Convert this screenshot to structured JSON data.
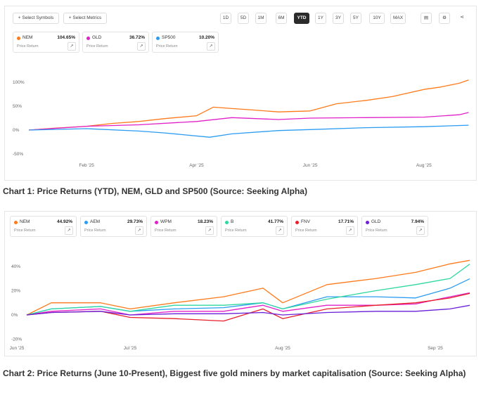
{
  "chart1": {
    "toolbar": {
      "select_symbols": "+ Select Symbols",
      "select_metrics": "+ Select Metrics",
      "ranges": [
        "1D",
        "5D",
        "1M",
        "6M",
        "YTD",
        "1Y",
        "3Y",
        "5Y",
        "10Y",
        "MAX"
      ],
      "active_range": "YTD",
      "icons": [
        "calendar-icon",
        "gear-icon",
        "share-icon"
      ]
    },
    "cards": [
      {
        "symbol": "NEM",
        "value": "104.65%",
        "metric": "Price Return",
        "color": "#ff7a1a"
      },
      {
        "symbol": "GLD",
        "value": "36.72%",
        "metric": "Price Return",
        "color": "#e020c8"
      },
      {
        "symbol": "SP500",
        "value": "10.20%",
        "metric": "Price Return",
        "color": "#2b9cf2"
      }
    ],
    "caption": "Chart 1: Price Returns (YTD), NEM, GLD and SP500 (Source: Seeking Alpha)"
  },
  "chart2": {
    "cards": [
      {
        "symbol": "NEM",
        "value": "44.92%",
        "metric": "Price Return",
        "color": "#ff7a1a"
      },
      {
        "symbol": "AEM",
        "value": "29.73%",
        "metric": "Price Return",
        "color": "#2b9cf2"
      },
      {
        "symbol": "WPM",
        "value": "18.23%",
        "metric": "Price Return",
        "color": "#e020c8"
      },
      {
        "symbol": "B",
        "value": "41.77%",
        "metric": "Price Return",
        "color": "#2ed8a0"
      },
      {
        "symbol": "FNV",
        "value": "17.71%",
        "metric": "Price Return",
        "color": "#e8202a"
      },
      {
        "symbol": "GLD",
        "value": "7.94%",
        "metric": "Price Return",
        "color": "#6a1fd8"
      }
    ],
    "caption": "Chart 2: Price Returns (June 10-Present), Biggest five gold miners by market capitalisation (Source: Seeking Alpha)"
  },
  "chart_data": [
    {
      "type": "line",
      "ylabel": "",
      "xlabel": "",
      "ylim": [
        -50,
        110
      ],
      "yticks": [
        "100%",
        "50%",
        "0%",
        "-50%"
      ],
      "ytick_values": [
        100,
        50,
        0,
        -50
      ],
      "xticks": [
        "Feb '25",
        "Apr '25",
        "Jun '25",
        "Aug '25"
      ],
      "xtick_dates": [
        "2025-02-01",
        "2025-04-01",
        "2025-06-01",
        "2025-08-01"
      ],
      "grid": false,
      "legend": "top-left cards",
      "series": [
        {
          "name": "NEM",
          "color": "#ff7a1a",
          "points": [
            [
              "2025-01-01",
              0
            ],
            [
              "2025-01-15",
              4
            ],
            [
              "2025-02-01",
              8
            ],
            [
              "2025-02-15",
              14
            ],
            [
              "2025-03-01",
              18
            ],
            [
              "2025-03-15",
              24
            ],
            [
              "2025-04-01",
              30
            ],
            [
              "2025-04-10",
              48
            ],
            [
              "2025-04-20",
              45
            ],
            [
              "2025-05-01",
              42
            ],
            [
              "2025-05-15",
              38
            ],
            [
              "2025-06-01",
              40
            ],
            [
              "2025-06-15",
              55
            ],
            [
              "2025-07-01",
              62
            ],
            [
              "2025-07-15",
              70
            ],
            [
              "2025-08-01",
              85
            ],
            [
              "2025-08-10",
              90
            ],
            [
              "2025-08-20",
              98
            ],
            [
              "2025-08-25",
              104.65
            ]
          ]
        },
        {
          "name": "GLD",
          "color": "#e020c8",
          "points": [
            [
              "2025-01-01",
              0
            ],
            [
              "2025-02-01",
              8
            ],
            [
              "2025-03-01",
              11
            ],
            [
              "2025-04-01",
              18
            ],
            [
              "2025-04-20",
              26
            ],
            [
              "2025-05-15",
              22
            ],
            [
              "2025-06-01",
              25
            ],
            [
              "2025-07-01",
              26
            ],
            [
              "2025-08-01",
              27
            ],
            [
              "2025-08-20",
              32
            ],
            [
              "2025-08-25",
              36.72
            ]
          ]
        },
        {
          "name": "SP500",
          "color": "#2b9cf2",
          "points": [
            [
              "2025-01-01",
              0
            ],
            [
              "2025-02-01",
              3
            ],
            [
              "2025-03-01",
              -2
            ],
            [
              "2025-03-15",
              -6
            ],
            [
              "2025-04-08",
              -15
            ],
            [
              "2025-04-20",
              -8
            ],
            [
              "2025-05-15",
              -1
            ],
            [
              "2025-06-01",
              1
            ],
            [
              "2025-07-01",
              5
            ],
            [
              "2025-08-01",
              7
            ],
            [
              "2025-08-25",
              10.2
            ]
          ]
        }
      ]
    },
    {
      "type": "line",
      "ylabel": "",
      "xlabel": "",
      "ylim": [
        -20,
        48
      ],
      "yticks": [
        "40%",
        "20%",
        "0%",
        "-20%"
      ],
      "ytick_values": [
        40,
        20,
        0,
        -20
      ],
      "xticks": [
        "Jun '25",
        "Jul '25",
        "Aug '25",
        "Sep '25"
      ],
      "xtick_dates": [
        "2025-06-08",
        "2025-07-01",
        "2025-08-01",
        "2025-09-01"
      ],
      "grid": false,
      "legend": "top-left cards",
      "series": [
        {
          "name": "NEM",
          "color": "#ff7a1a",
          "points": [
            [
              "2025-06-10",
              0
            ],
            [
              "2025-06-15",
              10
            ],
            [
              "2025-06-25",
              10
            ],
            [
              "2025-07-01",
              5
            ],
            [
              "2025-07-10",
              10
            ],
            [
              "2025-07-20",
              15
            ],
            [
              "2025-07-28",
              22
            ],
            [
              "2025-08-01",
              10
            ],
            [
              "2025-08-10",
              25
            ],
            [
              "2025-08-20",
              30
            ],
            [
              "2025-08-28",
              35
            ],
            [
              "2025-09-04",
              42
            ],
            [
              "2025-09-08",
              44.92
            ]
          ]
        },
        {
          "name": "AEM",
          "color": "#2b9cf2",
          "points": [
            [
              "2025-06-10",
              0
            ],
            [
              "2025-06-15",
              5
            ],
            [
              "2025-06-25",
              7
            ],
            [
              "2025-07-01",
              3
            ],
            [
              "2025-07-10",
              5
            ],
            [
              "2025-07-20",
              6
            ],
            [
              "2025-07-28",
              10
            ],
            [
              "2025-08-01",
              5
            ],
            [
              "2025-08-10",
              15
            ],
            [
              "2025-08-20",
              15
            ],
            [
              "2025-08-28",
              14
            ],
            [
              "2025-09-04",
              22
            ],
            [
              "2025-09-08",
              29.73
            ]
          ]
        },
        {
          "name": "WPM",
          "color": "#e020c8",
          "points": [
            [
              "2025-06-10",
              0
            ],
            [
              "2025-06-15",
              3
            ],
            [
              "2025-06-25",
              5
            ],
            [
              "2025-07-01",
              0
            ],
            [
              "2025-07-10",
              3
            ],
            [
              "2025-07-20",
              3
            ],
            [
              "2025-07-28",
              8
            ],
            [
              "2025-08-01",
              3
            ],
            [
              "2025-08-10",
              8
            ],
            [
              "2025-08-20",
              8
            ],
            [
              "2025-08-28",
              9
            ],
            [
              "2025-09-04",
              15
            ],
            [
              "2025-09-08",
              18.23
            ]
          ]
        },
        {
          "name": "B",
          "color": "#2ed8a0",
          "points": [
            [
              "2025-06-10",
              0
            ],
            [
              "2025-06-15",
              5
            ],
            [
              "2025-06-25",
              7
            ],
            [
              "2025-07-01",
              3
            ],
            [
              "2025-07-10",
              8
            ],
            [
              "2025-07-20",
              8
            ],
            [
              "2025-07-28",
              10
            ],
            [
              "2025-08-01",
              5
            ],
            [
              "2025-08-10",
              13
            ],
            [
              "2025-08-20",
              20
            ],
            [
              "2025-08-28",
              25
            ],
            [
              "2025-09-04",
              30
            ],
            [
              "2025-09-08",
              41.77
            ]
          ]
        },
        {
          "name": "FNV",
          "color": "#e8202a",
          "points": [
            [
              "2025-06-10",
              0
            ],
            [
              "2025-06-15",
              2
            ],
            [
              "2025-06-25",
              3
            ],
            [
              "2025-07-01",
              -2
            ],
            [
              "2025-07-10",
              -3
            ],
            [
              "2025-07-20",
              -5
            ],
            [
              "2025-07-28",
              5
            ],
            [
              "2025-08-01",
              -3
            ],
            [
              "2025-08-10",
              5
            ],
            [
              "2025-08-20",
              8
            ],
            [
              "2025-08-28",
              10
            ],
            [
              "2025-09-04",
              14
            ],
            [
              "2025-09-08",
              17.71
            ]
          ]
        },
        {
          "name": "GLD",
          "color": "#6a1fd8",
          "points": [
            [
              "2025-06-10",
              0
            ],
            [
              "2025-06-15",
              2
            ],
            [
              "2025-06-25",
              3
            ],
            [
              "2025-07-01",
              0
            ],
            [
              "2025-07-10",
              1
            ],
            [
              "2025-07-20",
              1
            ],
            [
              "2025-07-28",
              2
            ],
            [
              "2025-08-01",
              0
            ],
            [
              "2025-08-10",
              2
            ],
            [
              "2025-08-20",
              3
            ],
            [
              "2025-08-28",
              3
            ],
            [
              "2025-09-04",
              5
            ],
            [
              "2025-09-08",
              7.94
            ]
          ]
        }
      ]
    }
  ]
}
